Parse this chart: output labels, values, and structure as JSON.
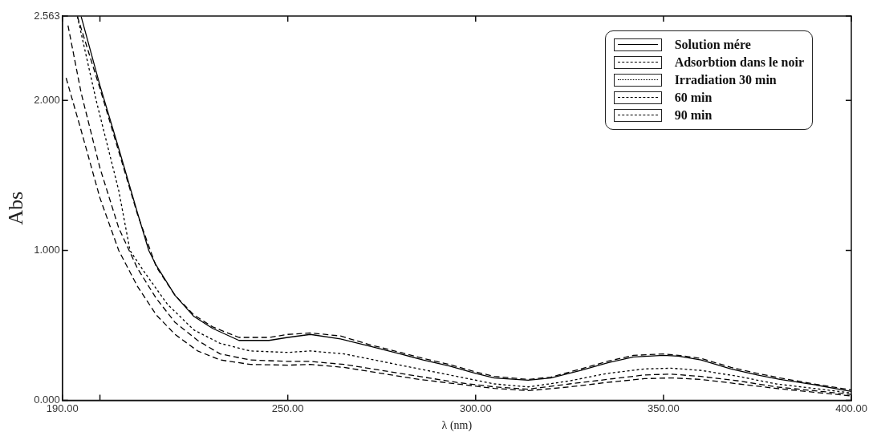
{
  "chart_data": {
    "type": "line",
    "xlabel": "λ (nm)",
    "ylabel": "Abs",
    "xlim": [
      190,
      400
    ],
    "ylim": [
      0,
      2.563
    ],
    "xticks": [
      {
        "value": 190,
        "label": "190.00"
      },
      {
        "value": 200,
        "label": null
      },
      {
        "value": 250,
        "label": "250.00"
      },
      {
        "value": 300,
        "label": "300.00"
      },
      {
        "value": 350,
        "label": "350.00"
      },
      {
        "value": 400,
        "label": "400.00"
      }
    ],
    "yticks": [
      {
        "value": 0,
        "label": "0.000"
      },
      {
        "value": 1,
        "label": "1.000"
      },
      {
        "value": 2,
        "label": "2.000"
      },
      {
        "value": 2.563,
        "label": "2.563"
      }
    ],
    "grid": false,
    "legend": "top right",
    "marker": "none",
    "series": [
      {
        "name": "Solution mére",
        "color": "#000000",
        "line_style": "solid",
        "x": [
          195,
          200,
          205,
          210,
          213,
          215,
          220,
          225,
          230,
          237,
          245,
          250,
          256,
          264,
          272,
          280,
          286,
          293,
          300,
          305,
          314,
          320,
          328,
          335,
          342,
          350,
          354,
          360,
          368,
          375,
          381,
          390,
          400
        ],
        "values": [
          2.56,
          2.1,
          1.68,
          1.25,
          1.0,
          0.9,
          0.7,
          0.56,
          0.48,
          0.4,
          0.4,
          0.42,
          0.44,
          0.41,
          0.36,
          0.31,
          0.27,
          0.23,
          0.18,
          0.15,
          0.135,
          0.15,
          0.2,
          0.25,
          0.29,
          0.3,
          0.295,
          0.27,
          0.21,
          0.17,
          0.14,
          0.105,
          0.06
        ]
      },
      {
        "name": "Adsorbtion dans le noir",
        "color": "#000000",
        "line_style": "dashed",
        "x": [
          194,
          200,
          205,
          210,
          215,
          220,
          225,
          230,
          237,
          245,
          250,
          256,
          264,
          272,
          280,
          286,
          293,
          300,
          305,
          314,
          320,
          328,
          335,
          342,
          350,
          354,
          360,
          368,
          375,
          381,
          390,
          400
        ],
        "values": [
          2.56,
          2.08,
          1.66,
          1.24,
          0.89,
          0.7,
          0.57,
          0.49,
          0.42,
          0.42,
          0.44,
          0.45,
          0.43,
          0.37,
          0.32,
          0.28,
          0.24,
          0.19,
          0.16,
          0.14,
          0.155,
          0.21,
          0.26,
          0.3,
          0.31,
          0.3,
          0.28,
          0.22,
          0.18,
          0.15,
          0.11,
          0.07
        ]
      },
      {
        "name": "Irradiation 30 min",
        "color": "#000000",
        "line_style": "dotted",
        "x": [
          194,
          199,
          205,
          208,
          212,
          218,
          225,
          232,
          240,
          250,
          256,
          265,
          275,
          285,
          295,
          305,
          314,
          325,
          335,
          345,
          352,
          360,
          370,
          380,
          390,
          400
        ],
        "values": [
          2.56,
          2.0,
          1.4,
          1.0,
          0.85,
          0.64,
          0.47,
          0.38,
          0.33,
          0.32,
          0.33,
          0.31,
          0.26,
          0.21,
          0.16,
          0.11,
          0.09,
          0.13,
          0.18,
          0.21,
          0.215,
          0.2,
          0.16,
          0.11,
          0.08,
          0.05
        ]
      },
      {
        "name": "60 min",
        "color": "#000000",
        "line_style": "dashed",
        "x": [
          191.5,
          195,
          200,
          205,
          210,
          215,
          220,
          226,
          232,
          240,
          250,
          256,
          265,
          275,
          285,
          295,
          305,
          314,
          325,
          335,
          345,
          352,
          360,
          370,
          380,
          390,
          400
        ],
        "values": [
          2.5,
          2.05,
          1.55,
          1.15,
          0.88,
          0.68,
          0.52,
          0.4,
          0.31,
          0.27,
          0.26,
          0.26,
          0.24,
          0.2,
          0.16,
          0.12,
          0.09,
          0.075,
          0.11,
          0.14,
          0.17,
          0.175,
          0.16,
          0.13,
          0.09,
          0.065,
          0.04
        ]
      },
      {
        "name": "90 min",
        "color": "#000000",
        "line_style": "dashed",
        "x": [
          191,
          195,
          200,
          205,
          210,
          215,
          220,
          226,
          232,
          240,
          250,
          256,
          265,
          275,
          285,
          295,
          305,
          314,
          325,
          335,
          345,
          352,
          360,
          370,
          380,
          390,
          400
        ],
        "values": [
          2.15,
          1.8,
          1.35,
          1.0,
          0.76,
          0.57,
          0.44,
          0.33,
          0.27,
          0.24,
          0.235,
          0.24,
          0.22,
          0.18,
          0.14,
          0.11,
          0.08,
          0.065,
          0.09,
          0.12,
          0.145,
          0.15,
          0.14,
          0.11,
          0.08,
          0.055,
          0.03
        ]
      }
    ]
  }
}
